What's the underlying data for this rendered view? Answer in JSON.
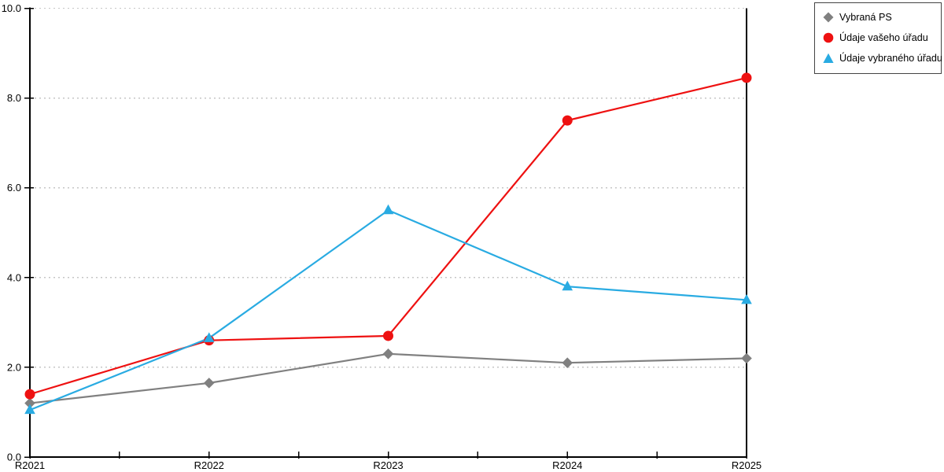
{
  "colors": {
    "background": "#ffffff",
    "axis": "#000000",
    "grid": "#c6c6c6",
    "tick_label": "#000000",
    "legend_border": "#444444",
    "series_gray": "#808080",
    "series_red": "#ee1111",
    "series_blue": "#29abe2"
  },
  "chart_data": {
    "type": "line",
    "title": "",
    "xlabel": "",
    "ylabel": "",
    "categories": [
      "R2021",
      "R2022",
      "R2023",
      "R2024",
      "R2025"
    ],
    "ylim": [
      0,
      10
    ],
    "grid": "horizontal-dashed",
    "legend_position": "top-right-outside",
    "y_ticks": [
      {
        "label": "0.0",
        "value": 0
      },
      {
        "label": "2.0",
        "value": 2
      },
      {
        "label": "4.0",
        "value": 4
      },
      {
        "label": "6.0",
        "value": 6
      },
      {
        "label": "8.0",
        "value": 8
      },
      {
        "label": "10.0",
        "value": 10
      }
    ],
    "series": [
      {
        "name": "Vybraná PS",
        "marker": "diamond",
        "color": "#808080",
        "values": [
          1.2,
          1.65,
          2.3,
          2.1,
          2.2
        ]
      },
      {
        "name": "Údaje vašeho úřadu",
        "marker": "circle",
        "color": "#ee1111",
        "values": [
          1.4,
          2.6,
          2.7,
          7.5,
          8.45
        ]
      },
      {
        "name": "Údaje vybraného úřadu",
        "marker": "triangle",
        "color": "#29abe2",
        "values": [
          1.05,
          2.65,
          5.5,
          3.8,
          3.5
        ]
      }
    ]
  }
}
